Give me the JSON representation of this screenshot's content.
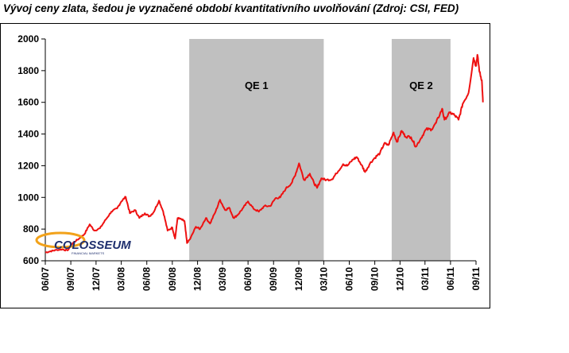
{
  "title": "Vývoj ceny zlata, šedou je vyznačené období kvantitativního uvolňování (Zdroj: CSI, FED)",
  "logo": {
    "name": "COLOSSEUM",
    "tagline": "FINANCIAL MARKETS"
  },
  "colors": {
    "line": "#ee1111",
    "shade": "#c0c0c0",
    "axis": "#000000",
    "logo_blue": "#1f2f6e",
    "logo_orange": "#f2a21a"
  },
  "chart_data": {
    "type": "line",
    "title": "Vývoj ceny zlata, šedou je vyznačené období kvantitativního uvolňování (Zdroj: CSI, FED)",
    "xlabel": "",
    "ylabel": "",
    "ylim": [
      600,
      2000
    ],
    "yticks": [
      600,
      800,
      1000,
      1200,
      1400,
      1600,
      1800,
      2000
    ],
    "x_range": [
      "2007-06",
      "2011-09"
    ],
    "x_tick_labels": [
      "06/07",
      "09/07",
      "12/07",
      "03/08",
      "06/08",
      "09/08",
      "12/08",
      "03/09",
      "06/09",
      "09/09",
      "12/09",
      "03/10",
      "06/10",
      "09/10",
      "12/10",
      "03/11",
      "06/11",
      "09/11"
    ],
    "grid": false,
    "shaded_periods": [
      {
        "label": "QE 1",
        "start": "2008-11",
        "end": "2010-03"
      },
      {
        "label": "QE 2",
        "start": "2010-11",
        "end": "2011-06"
      }
    ],
    "series": [
      {
        "points": [
          [
            "2007-06-01",
            652
          ],
          [
            "2007-06-20",
            660
          ],
          [
            "2007-07-10",
            668
          ],
          [
            "2007-08-01",
            672
          ],
          [
            "2007-08-20",
            665
          ],
          [
            "2007-09-10",
            715
          ],
          [
            "2007-10-01",
            740
          ],
          [
            "2007-10-20",
            768
          ],
          [
            "2007-11-08",
            830
          ],
          [
            "2007-11-25",
            790
          ],
          [
            "2007-12-15",
            805
          ],
          [
            "2008-01-05",
            860
          ],
          [
            "2008-01-25",
            910
          ],
          [
            "2008-02-15",
            930
          ],
          [
            "2008-03-01",
            975
          ],
          [
            "2008-03-17",
            1003
          ],
          [
            "2008-04-01",
            900
          ],
          [
            "2008-04-20",
            920
          ],
          [
            "2008-05-05",
            870
          ],
          [
            "2008-05-25",
            900
          ],
          [
            "2008-06-10",
            880
          ],
          [
            "2008-06-25",
            905
          ],
          [
            "2008-07-15",
            980
          ],
          [
            "2008-07-30",
            912
          ],
          [
            "2008-08-15",
            790
          ],
          [
            "2008-09-01",
            810
          ],
          [
            "2008-09-11",
            740
          ],
          [
            "2008-09-20",
            870
          ],
          [
            "2008-10-05",
            860
          ],
          [
            "2008-10-15",
            850
          ],
          [
            "2008-10-24",
            712
          ],
          [
            "2008-11-05",
            740
          ],
          [
            "2008-11-25",
            815
          ],
          [
            "2008-12-10",
            800
          ],
          [
            "2008-12-31",
            870
          ],
          [
            "2009-01-15",
            835
          ],
          [
            "2009-02-05",
            915
          ],
          [
            "2009-02-20",
            985
          ],
          [
            "2009-03-10",
            920
          ],
          [
            "2009-03-25",
            935
          ],
          [
            "2009-04-10",
            870
          ],
          [
            "2009-04-25",
            890
          ],
          [
            "2009-05-15",
            935
          ],
          [
            "2009-06-01",
            975
          ],
          [
            "2009-06-20",
            930
          ],
          [
            "2009-07-10",
            910
          ],
          [
            "2009-07-30",
            945
          ],
          [
            "2009-08-20",
            945
          ],
          [
            "2009-09-08",
            995
          ],
          [
            "2009-09-25",
            1000
          ],
          [
            "2009-10-15",
            1055
          ],
          [
            "2009-11-05",
            1090
          ],
          [
            "2009-11-20",
            1150
          ],
          [
            "2009-12-02",
            1215
          ],
          [
            "2009-12-20",
            1110
          ],
          [
            "2010-01-10",
            1150
          ],
          [
            "2010-01-25",
            1090
          ],
          [
            "2010-02-05",
            1060
          ],
          [
            "2010-02-20",
            1120
          ],
          [
            "2010-03-10",
            1110
          ],
          [
            "2010-03-31",
            1115
          ],
          [
            "2010-04-15",
            1150
          ],
          [
            "2010-05-10",
            1210
          ],
          [
            "2010-05-25",
            1200
          ],
          [
            "2010-06-15",
            1240
          ],
          [
            "2010-06-28",
            1255
          ],
          [
            "2010-07-15",
            1205
          ],
          [
            "2010-07-28",
            1160
          ],
          [
            "2010-08-15",
            1215
          ],
          [
            "2010-09-01",
            1250
          ],
          [
            "2010-09-20",
            1280
          ],
          [
            "2010-10-05",
            1340
          ],
          [
            "2010-10-20",
            1330
          ],
          [
            "2010-11-08",
            1410
          ],
          [
            "2010-11-20",
            1350
          ],
          [
            "2010-12-07",
            1420
          ],
          [
            "2010-12-20",
            1385
          ],
          [
            "2011-01-10",
            1380
          ],
          [
            "2011-01-27",
            1320
          ],
          [
            "2011-02-15",
            1375
          ],
          [
            "2011-03-05",
            1430
          ],
          [
            "2011-03-25",
            1430
          ],
          [
            "2011-04-10",
            1470
          ],
          [
            "2011-05-02",
            1560
          ],
          [
            "2011-05-10",
            1490
          ],
          [
            "2011-05-30",
            1535
          ],
          [
            "2011-06-15",
            1520
          ],
          [
            "2011-06-30",
            1490
          ],
          [
            "2011-07-15",
            1590
          ],
          [
            "2011-08-05",
            1660
          ],
          [
            "2011-08-23",
            1880
          ],
          [
            "2011-09-01",
            1830
          ],
          [
            "2011-09-06",
            1900
          ],
          [
            "2011-09-14",
            1790
          ],
          [
            "2011-09-22",
            1740
          ],
          [
            "2011-09-26",
            1600
          ]
        ]
      }
    ]
  }
}
